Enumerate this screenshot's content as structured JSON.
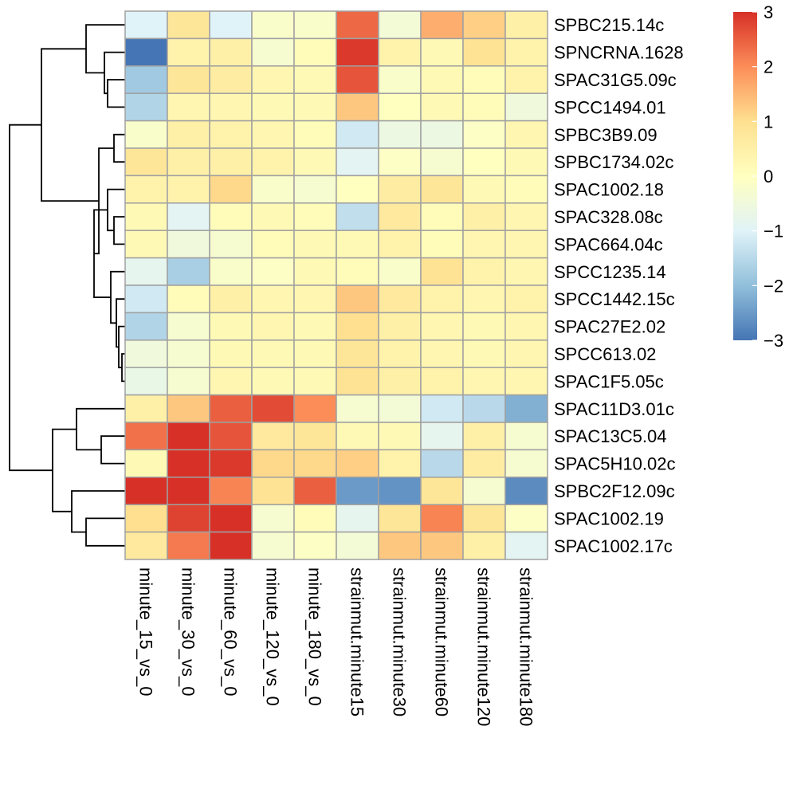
{
  "chart_data": {
    "type": "heatmap",
    "rows": [
      "SPBC215.14c",
      "SPNCRNA.1628",
      "SPAC31G5.09c",
      "SPCC1494.01",
      "SPBC3B9.09",
      "SPBC1734.02c",
      "SPAC1002.18",
      "SPAC328.08c",
      "SPAC664.04c",
      "SPCC1235.14",
      "SPCC1442.15c",
      "SPAC27E2.02",
      "SPCC613.02",
      "SPAC1F5.05c",
      "SPAC11D3.01c",
      "SPAC13C5.04",
      "SPAC5H10.02c",
      "SPBC2F12.09c",
      "SPAC1002.19",
      "SPAC1002.17c"
    ],
    "columns": [
      "minute_15_vs_0",
      "minute_30_vs_0",
      "minute_60_vs_0",
      "minute_120_vs_0",
      "minute_180_vs_0",
      "strainmut.minute15",
      "strainmut.minute30",
      "strainmut.minute60",
      "strainmut.minute120",
      "strainmut.minute180"
    ],
    "values": [
      [
        -1.0,
        0.8,
        -1.0,
        -0.2,
        -0.2,
        2.4,
        -0.4,
        1.6,
        1.2,
        0.5
      ],
      [
        -3.0,
        0.4,
        0.5,
        -0.3,
        0.1,
        2.9,
        0.4,
        0.2,
        0.9,
        0.4
      ],
      [
        -1.8,
        0.8,
        0.6,
        0.3,
        0.2,
        2.6,
        -0.2,
        0.2,
        0.1,
        0.4
      ],
      [
        -1.6,
        0.3,
        0.3,
        0.2,
        0.2,
        1.3,
        0.0,
        0.2,
        0.1,
        -0.5
      ],
      [
        -0.2,
        0.5,
        0.4,
        0.3,
        0.1,
        -1.2,
        -0.6,
        -0.6,
        -0.1,
        0.3
      ],
      [
        0.8,
        0.5,
        0.5,
        0.4,
        0.2,
        -0.9,
        -0.1,
        -0.3,
        0.0,
        0.2
      ],
      [
        0.4,
        0.4,
        1.1,
        -0.2,
        -0.3,
        0.0,
        0.6,
        0.8,
        0.2,
        0.1
      ],
      [
        0.2,
        -0.9,
        0.1,
        0.2,
        0.1,
        -1.4,
        0.7,
        0.1,
        0.5,
        0.3
      ],
      [
        0.2,
        -0.5,
        -0.3,
        0.1,
        0.2,
        0.2,
        0.4,
        0.1,
        0.3,
        0.3
      ],
      [
        -0.8,
        -1.7,
        -0.2,
        -0.1,
        0.2,
        0.1,
        -0.2,
        0.9,
        0.4,
        0.3
      ],
      [
        -1.2,
        0.1,
        0.5,
        0.3,
        0.3,
        1.3,
        0.7,
        0.4,
        0.3,
        0.4
      ],
      [
        -1.6,
        -0.3,
        0.2,
        0.3,
        0.2,
        1.0,
        0.5,
        0.3,
        0.2,
        0.3
      ],
      [
        -0.5,
        -0.3,
        0.2,
        0.2,
        0.2,
        0.8,
        0.4,
        0.3,
        0.2,
        0.3
      ],
      [
        -0.7,
        -0.3,
        0.3,
        0.2,
        0.2,
        0.9,
        0.5,
        0.4,
        0.3,
        0.3
      ],
      [
        0.5,
        1.3,
        2.5,
        2.7,
        2.0,
        -0.3,
        -0.4,
        -1.2,
        -1.5,
        -2.2
      ],
      [
        2.3,
        3.0,
        2.6,
        0.7,
        0.8,
        0.2,
        0.2,
        -0.8,
        0.5,
        -0.3
      ],
      [
        0.2,
        3.0,
        2.9,
        1.1,
        1.1,
        1.2,
        0.4,
        -1.5,
        0.6,
        -0.3
      ],
      [
        3.0,
        3.0,
        2.1,
        0.9,
        2.5,
        -2.5,
        -2.6,
        0.8,
        -0.3,
        -2.7
      ],
      [
        1.0,
        2.8,
        3.0,
        -0.3,
        0.1,
        -0.8,
        0.8,
        2.1,
        0.8,
        -0.1
      ],
      [
        0.7,
        2.2,
        3.0,
        -0.3,
        -0.1,
        -0.4,
        1.3,
        1.3,
        0.5,
        -0.9
      ]
    ],
    "color_scale": {
      "min": -3,
      "max": 3,
      "colors": [
        "#4575B4",
        "#91BFDB",
        "#E0F3F8",
        "#FFFFBF",
        "#FEE090",
        "#FC8D59",
        "#D73027"
      ],
      "ticks": [
        3,
        2,
        1,
        0,
        -1,
        -2,
        -3
      ]
    },
    "cell_border": "#A0A0A0",
    "dendrogram": {
      "groups": [
        {
          "id": "g_top",
          "members": [
            0,
            1,
            2,
            3
          ]
        },
        {
          "id": "g_mid",
          "members": [
            4,
            5,
            6,
            7,
            8,
            9,
            10,
            11,
            12,
            13
          ]
        },
        {
          "id": "g_bot",
          "members": [
            14,
            15,
            16,
            17,
            18,
            19
          ]
        }
      ]
    }
  }
}
